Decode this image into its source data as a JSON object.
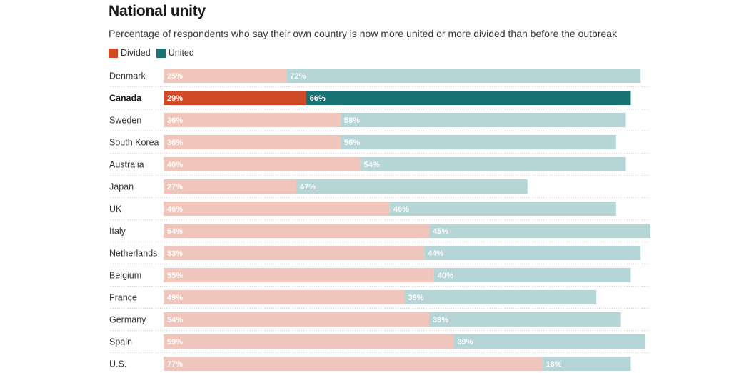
{
  "chart_data": {
    "type": "bar",
    "orientation": "horizontal",
    "stacked": true,
    "title": "National unity",
    "subtitle": "Percentage of respondents who say their own country is now more united or more divided than before the outbreak",
    "xlabel": "",
    "ylabel": "",
    "xlim": [
      0,
      100
    ],
    "grid": false,
    "legend_position": "top-left",
    "highlight": "Canada",
    "categories": [
      "Denmark",
      "Canada",
      "Sweden",
      "South Korea",
      "Australia",
      "Japan",
      "UK",
      "Italy",
      "Netherlands",
      "Belgium",
      "France",
      "Germany",
      "Spain",
      "U.S."
    ],
    "series": [
      {
        "name": "Divided",
        "values": [
          25,
          29,
          36,
          36,
          40,
          27,
          46,
          54,
          53,
          55,
          49,
          54,
          59,
          77
        ],
        "color": "#d04a26",
        "muted_color": "#efc5bc"
      },
      {
        "name": "United",
        "values": [
          72,
          66,
          58,
          56,
          54,
          47,
          46,
          45,
          44,
          40,
          39,
          39,
          39,
          18
        ],
        "color": "#167372",
        "muted_color": "#b6d5d6"
      }
    ],
    "value_suffix": "%"
  }
}
